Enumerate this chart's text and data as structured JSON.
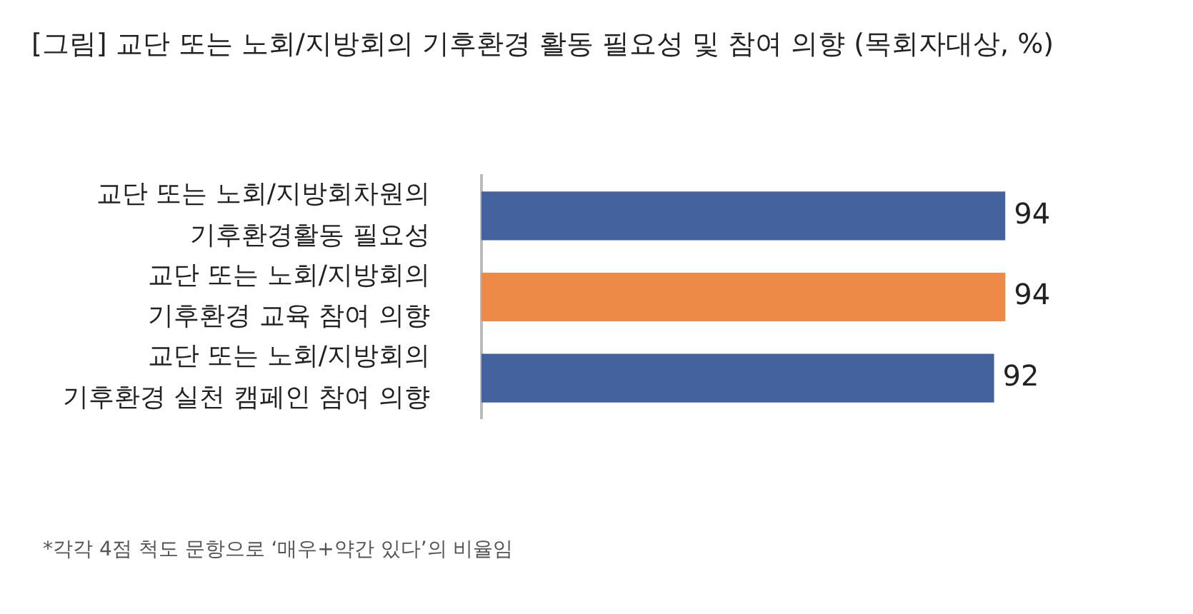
{
  "chart_data": {
    "type": "bar",
    "orientation": "horizontal",
    "title": "[그림] 교단 또는 노회/지방회의 기후환경 활동 필요성 및 참여 의향 (목회자대상, %)",
    "categories": [
      "교단 또는 노회/지방회차원의 기후환경활동 필요성",
      "교단 또는 노회/지방회의 기후환경 교육 참여 의향",
      "교단 또는 노회/지방회의 기후환경 실천 캠페인 참여 의향"
    ],
    "values": [
      94,
      94,
      92
    ],
    "colors": [
      "#44639e",
      "#ee8a48",
      "#44639e"
    ],
    "data_labels": true,
    "legend": false,
    "annotations": [
      "*각각 4점 척도 문항으로 ‘매우+약간 있다’의 비율임"
    ]
  }
}
